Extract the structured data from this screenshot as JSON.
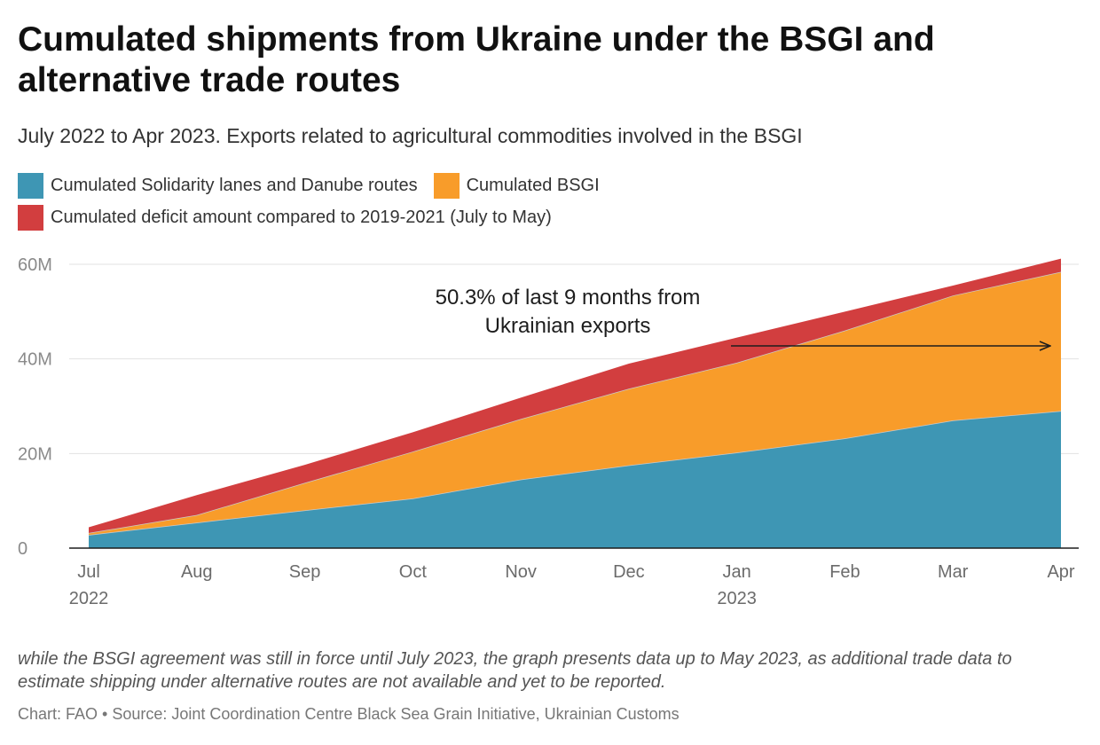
{
  "title": "Cumulated shipments from Ukraine under the BSGI and alternative trade routes",
  "subtitle": "July 2022 to Apr 2023. Exports related to agricultural commodities involved in the BSGI",
  "legend": [
    {
      "label": "Cumulated Solidarity lanes and Danube routes",
      "color": "#3e96b4"
    },
    {
      "label": "Cumulated BSGI",
      "color": "#f89c2a"
    },
    {
      "label": "Cumulated deficit amount compared to 2019-2021 (July to May)",
      "color": "#d23e3f"
    }
  ],
  "annotation": {
    "line1": "50.3% of last 9 months from",
    "line2": "Ukrainian exports"
  },
  "note": "while the BSGI agreement was still in force until July 2023, the graph presents data up to May 2023, as additional trade data to estimate shipping under alternative routes are not available and yet to be reported.",
  "source": "Chart: FAO • Source: Joint Coordination Centre Black Sea Grain Initiative, Ukrainian Customs",
  "chart_data": {
    "type": "area",
    "stacked": true,
    "x": [
      "Jul",
      "Aug",
      "Sep",
      "Oct",
      "Nov",
      "Dec",
      "Jan",
      "Feb",
      "Mar",
      "Apr"
    ],
    "x_sublabels": [
      "2022",
      "",
      "",
      "",
      "",
      "",
      "2023",
      "",
      "",
      ""
    ],
    "series": [
      {
        "name": "Cumulated Solidarity lanes and Danube routes",
        "color": "#3e96b4",
        "values": [
          2.8,
          5.4,
          8.0,
          10.5,
          14.5,
          17.5,
          20.2,
          23.2,
          27.0,
          29.0
        ]
      },
      {
        "name": "Cumulated BSGI",
        "color": "#f89c2a",
        "values": [
          0.4,
          1.6,
          5.8,
          9.9,
          12.8,
          16.2,
          19.0,
          22.8,
          26.4,
          29.4
        ]
      },
      {
        "name": "Cumulated deficit amount compared to 2019-2021 (July to May)",
        "color": "#d23e3f",
        "values": [
          1.2,
          4.2,
          3.8,
          4.1,
          4.5,
          5.3,
          5.3,
          4.0,
          2.1,
          2.8
        ]
      }
    ],
    "ylim": [
      0,
      60
    ],
    "yticks": [
      0,
      20,
      40,
      60
    ],
    "ytick_labels": [
      "0",
      "20M",
      "40M",
      "60M"
    ],
    "grid": true,
    "legend_position": "top-left"
  }
}
